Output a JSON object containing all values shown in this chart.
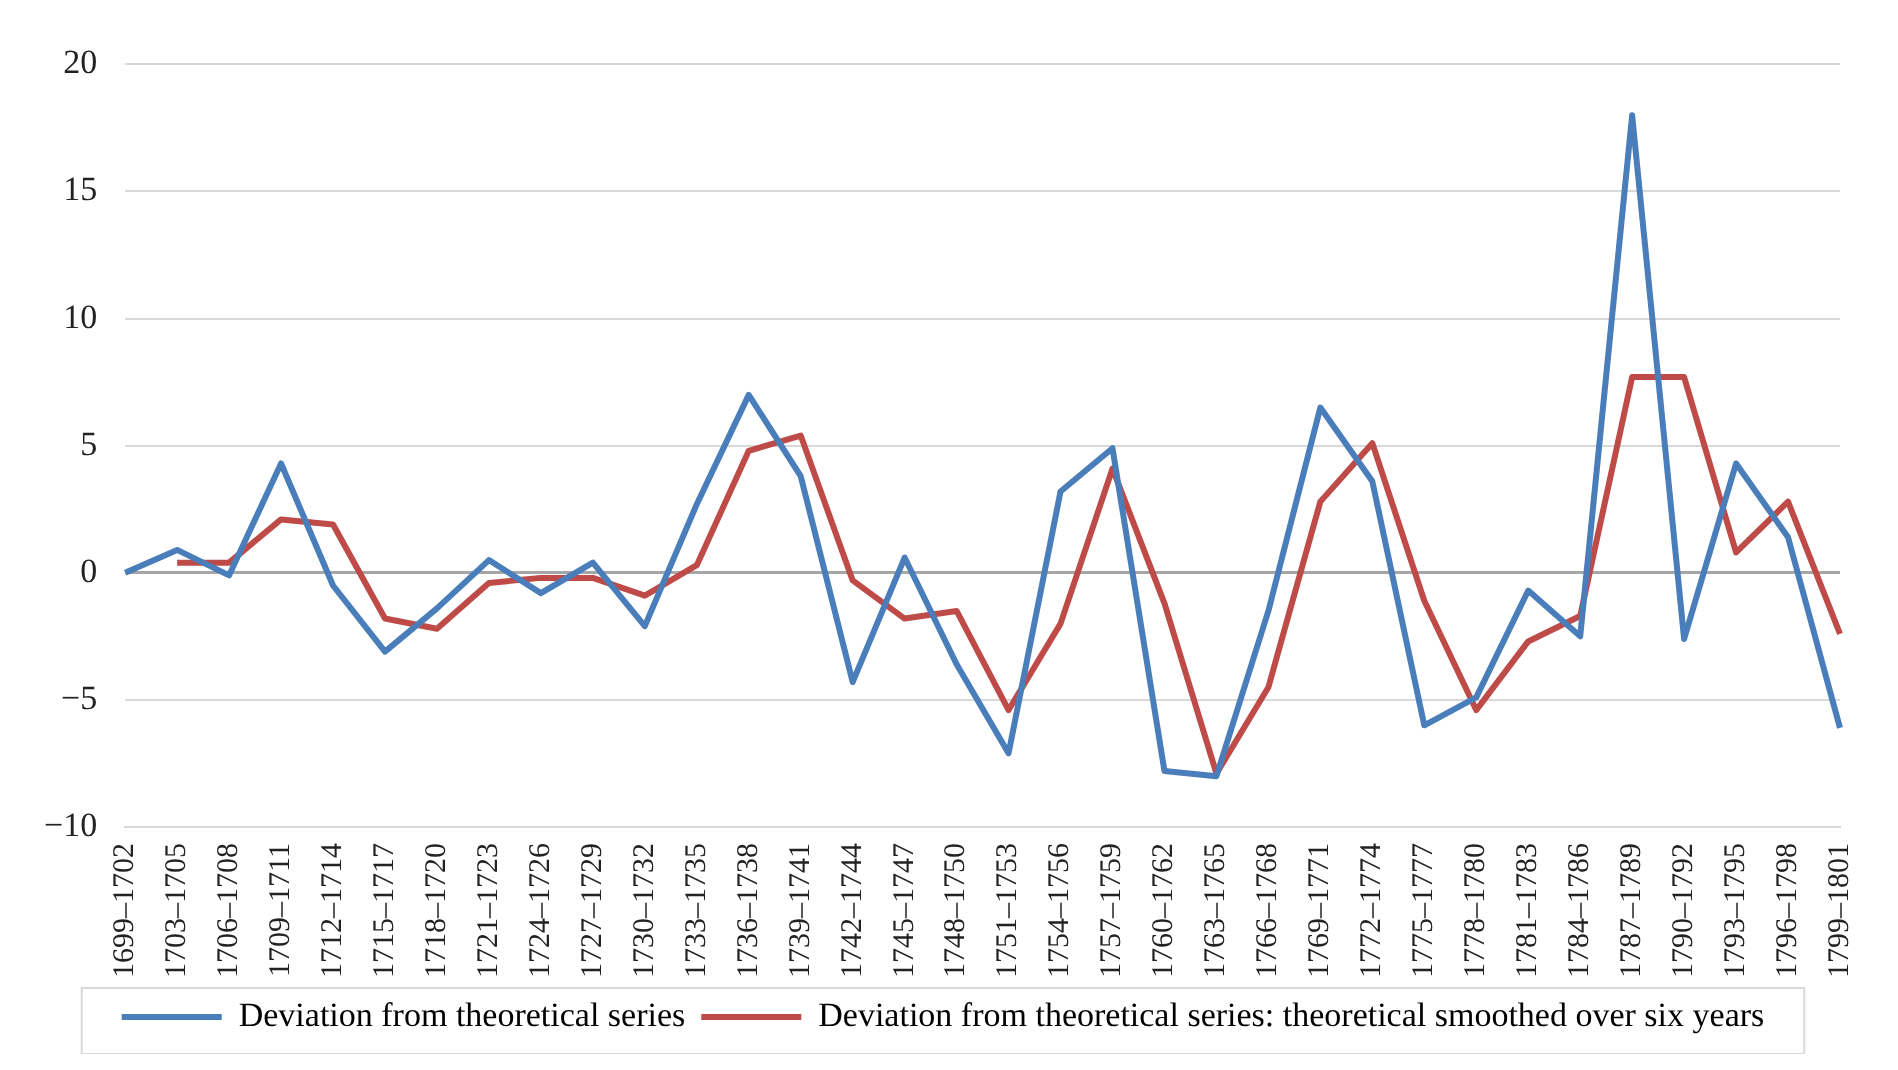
{
  "chart_data": {
    "type": "line",
    "categories": [
      "1699–1702",
      "1703–1705",
      "1706–1708",
      "1709–1711",
      "1712–1714",
      "1715–1717",
      "1718–1720",
      "1721–1723",
      "1724–1726",
      "1727–1729",
      "1730–1732",
      "1733–1735",
      "1736–1738",
      "1739–1741",
      "1742–1744",
      "1745–1747",
      "1748–1750",
      "1751–1753",
      "1754–1756",
      "1757–1759",
      "1760–1762",
      "1763–1765",
      "1766–1768",
      "1769–1771",
      "1772–1774",
      "1775–1777",
      "1778–1780",
      "1781–1783",
      "1784–1786",
      "1787–1789",
      "1790–1792",
      "1793–1795",
      "1796–1798",
      "1799–1801"
    ],
    "series": [
      {
        "name": "Deviation from theoretical series",
        "color": "#4a7ebb",
        "values": [
          0,
          0.9,
          -0.1,
          4.3,
          -0.5,
          -3.1,
          -1.4,
          0.5,
          -0.8,
          0.4,
          -2.1,
          2.7,
          7.0,
          3.8,
          -4.3,
          0.6,
          -3.6,
          -7.1,
          3.2,
          4.9,
          -7.8,
          -8.0,
          -1.5,
          6.5,
          3.6,
          -6.0,
          -4.9,
          -0.7,
          -2.5,
          18.0,
          -2.6,
          4.3,
          1.4,
          -6.1
        ]
      },
      {
        "name": "Deviation from theoretical series: theoretical smoothed over six years",
        "color": "#be4b48",
        "values": [
          null,
          0.4,
          0.4,
          2.1,
          1.9,
          -1.8,
          -2.2,
          -0.4,
          -0.2,
          -0.2,
          -0.9,
          0.3,
          4.8,
          5.4,
          -0.3,
          -1.8,
          -1.5,
          -5.4,
          -2.0,
          4.1,
          -1.2,
          -7.9,
          -4.5,
          2.8,
          5.1,
          -1.1,
          -5.4,
          -2.7,
          -1.7,
          7.7,
          7.7,
          0.8,
          2.8,
          -2.4
        ]
      }
    ],
    "ylim": [
      -10,
      20
    ],
    "yticks": [
      {
        "value": -10,
        "label": "−10"
      },
      {
        "value": -5,
        "label": "−5"
      },
      0,
      5,
      10,
      15,
      20
    ],
    "grid": "y",
    "legend": "bottom",
    "marker": "none",
    "line_style": "solid"
  }
}
